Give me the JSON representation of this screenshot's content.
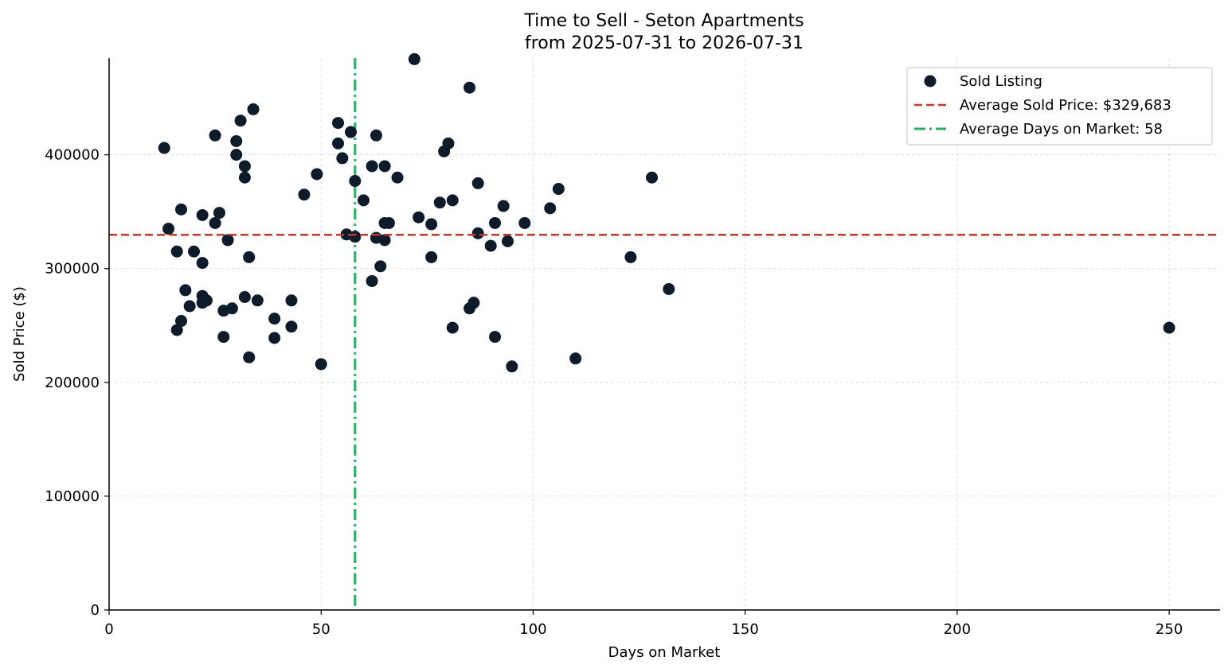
{
  "chart_data": {
    "type": "scatter",
    "title": "Time to Sell - Seton Apartments",
    "subtitle": "from 2025-07-31 to 2026-07-31",
    "xlabel": "Days on Market",
    "ylabel": "Sold Price ($)",
    "xlim": [
      0,
      262
    ],
    "ylim": [
      0,
      485000
    ],
    "xticks": [
      0,
      50,
      100,
      150,
      200,
      250
    ],
    "yticks": [
      0,
      100000,
      200000,
      300000,
      400000
    ],
    "grid": true,
    "legend_position": "top-right",
    "colors": {
      "points": "#0d1b2a",
      "avg_price": "#c0392b",
      "avg_days": "#27ae60",
      "grid": "#d9d9d9"
    },
    "series": [
      {
        "name": "Sold Listing",
        "points": [
          [
            13,
            406000
          ],
          [
            14,
            335000
          ],
          [
            16,
            315000
          ],
          [
            16,
            246000
          ],
          [
            17,
            352000
          ],
          [
            17,
            254000
          ],
          [
            18,
            281000
          ],
          [
            19,
            267000
          ],
          [
            20,
            315000
          ],
          [
            22,
            347000
          ],
          [
            22,
            305000
          ],
          [
            22,
            276000
          ],
          [
            22,
            270000
          ],
          [
            23,
            272000
          ],
          [
            25,
            417000
          ],
          [
            25,
            340000
          ],
          [
            26,
            349000
          ],
          [
            27,
            263000
          ],
          [
            27,
            240000
          ],
          [
            28,
            325000
          ],
          [
            29,
            265000
          ],
          [
            30,
            412000
          ],
          [
            30,
            400000
          ],
          [
            31,
            430000
          ],
          [
            32,
            390000
          ],
          [
            32,
            380000
          ],
          [
            32,
            275000
          ],
          [
            33,
            310000
          ],
          [
            33,
            222000
          ],
          [
            34,
            440000
          ],
          [
            35,
            272000
          ],
          [
            39,
            256000
          ],
          [
            39,
            239000
          ],
          [
            43,
            272000
          ],
          [
            43,
            249000
          ],
          [
            46,
            365000
          ],
          [
            49,
            383000
          ],
          [
            50,
            216000
          ],
          [
            54,
            428000
          ],
          [
            54,
            410000
          ],
          [
            55,
            397000
          ],
          [
            56,
            330000
          ],
          [
            57,
            420000
          ],
          [
            58,
            377000
          ],
          [
            58,
            328000
          ],
          [
            60,
            360000
          ],
          [
            62,
            390000
          ],
          [
            62,
            289000
          ],
          [
            63,
            417000
          ],
          [
            63,
            327000
          ],
          [
            64,
            302000
          ],
          [
            65,
            390000
          ],
          [
            65,
            340000
          ],
          [
            65,
            325000
          ],
          [
            66,
            340000
          ],
          [
            68,
            380000
          ],
          [
            72,
            484000
          ],
          [
            73,
            345000
          ],
          [
            76,
            339000
          ],
          [
            76,
            310000
          ],
          [
            78,
            358000
          ],
          [
            79,
            403000
          ],
          [
            80,
            410000
          ],
          [
            81,
            360000
          ],
          [
            81,
            248000
          ],
          [
            85,
            459000
          ],
          [
            85,
            265000
          ],
          [
            86,
            270000
          ],
          [
            87,
            375000
          ],
          [
            87,
            331000
          ],
          [
            90,
            320000
          ],
          [
            91,
            340000
          ],
          [
            91,
            240000
          ],
          [
            93,
            355000
          ],
          [
            94,
            324000
          ],
          [
            95,
            214000
          ],
          [
            98,
            340000
          ],
          [
            104,
            353000
          ],
          [
            106,
            370000
          ],
          [
            110,
            221000
          ],
          [
            123,
            310000
          ],
          [
            128,
            380000
          ],
          [
            132,
            282000
          ],
          [
            250,
            248000
          ]
        ]
      }
    ],
    "average_price": {
      "label": "Average Sold Price: $329,683",
      "value": 329683
    },
    "average_days": {
      "label": "Average Days on Market: 58",
      "value": 58
    }
  }
}
